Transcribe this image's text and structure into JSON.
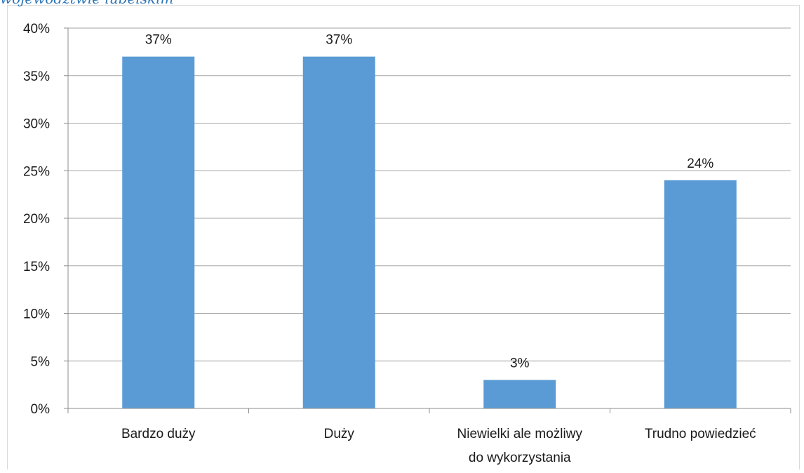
{
  "page": {
    "top_caption": "wojewodztwie lubelskim"
  },
  "chart_data": {
    "type": "bar",
    "categories": [
      [
        "Bardzo duży"
      ],
      [
        "Duży"
      ],
      [
        "Niewielki ale możliwy",
        "do wykorzystania"
      ],
      [
        "Trudno powiedzieć"
      ]
    ],
    "values": [
      37,
      37,
      3,
      24
    ],
    "data_labels": [
      "37%",
      "37%",
      "3%",
      "24%"
    ],
    "yticks": [
      "0%",
      "5%",
      "10%",
      "15%",
      "20%",
      "25%",
      "30%",
      "35%",
      "40%"
    ],
    "ylim": [
      0,
      40
    ],
    "grid": true,
    "bar_color": "#5b9bd5",
    "grid_color": "#a6a6a6",
    "title": "",
    "xlabel": "",
    "ylabel": ""
  }
}
